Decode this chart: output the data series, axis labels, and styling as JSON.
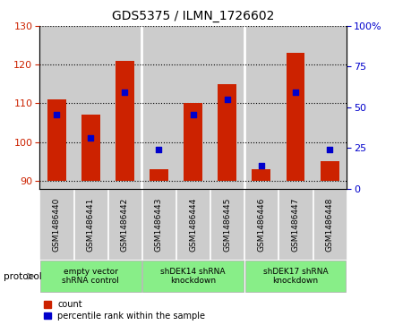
{
  "title": "GDS5375 / ILMN_1726602",
  "samples": [
    "GSM1486440",
    "GSM1486441",
    "GSM1486442",
    "GSM1486443",
    "GSM1486444",
    "GSM1486445",
    "GSM1486446",
    "GSM1486447",
    "GSM1486448"
  ],
  "bar_bottom": 90,
  "bar_tops": [
    111,
    107,
    121,
    93,
    110,
    115,
    93,
    123,
    95
  ],
  "percentile_values": [
    107,
    101,
    113,
    98,
    107,
    111,
    94,
    113,
    98
  ],
  "ylim_left": [
    88,
    130
  ],
  "ylim_right": [
    0,
    100
  ],
  "yticks_left": [
    90,
    100,
    110,
    120,
    130
  ],
  "yticks_right": [
    0,
    25,
    50,
    75,
    100
  ],
  "bar_color": "#cc2200",
  "dot_color": "#0000cc",
  "protocols": [
    {
      "label": "empty vector\nshRNA control",
      "start": 0,
      "end": 3
    },
    {
      "label": "shDEK14 shRNA\nknockdown",
      "start": 3,
      "end": 6
    },
    {
      "label": "shDEK17 shRNA\nknockdown",
      "start": 6,
      "end": 9
    }
  ],
  "protocol_bg": "#88ee88",
  "sample_bg": "#cccccc",
  "legend_items": [
    {
      "color": "#cc2200",
      "label": "count"
    },
    {
      "color": "#0000cc",
      "label": "percentile rank within the sample"
    }
  ],
  "bar_width": 0.55,
  "dot_size": 22
}
